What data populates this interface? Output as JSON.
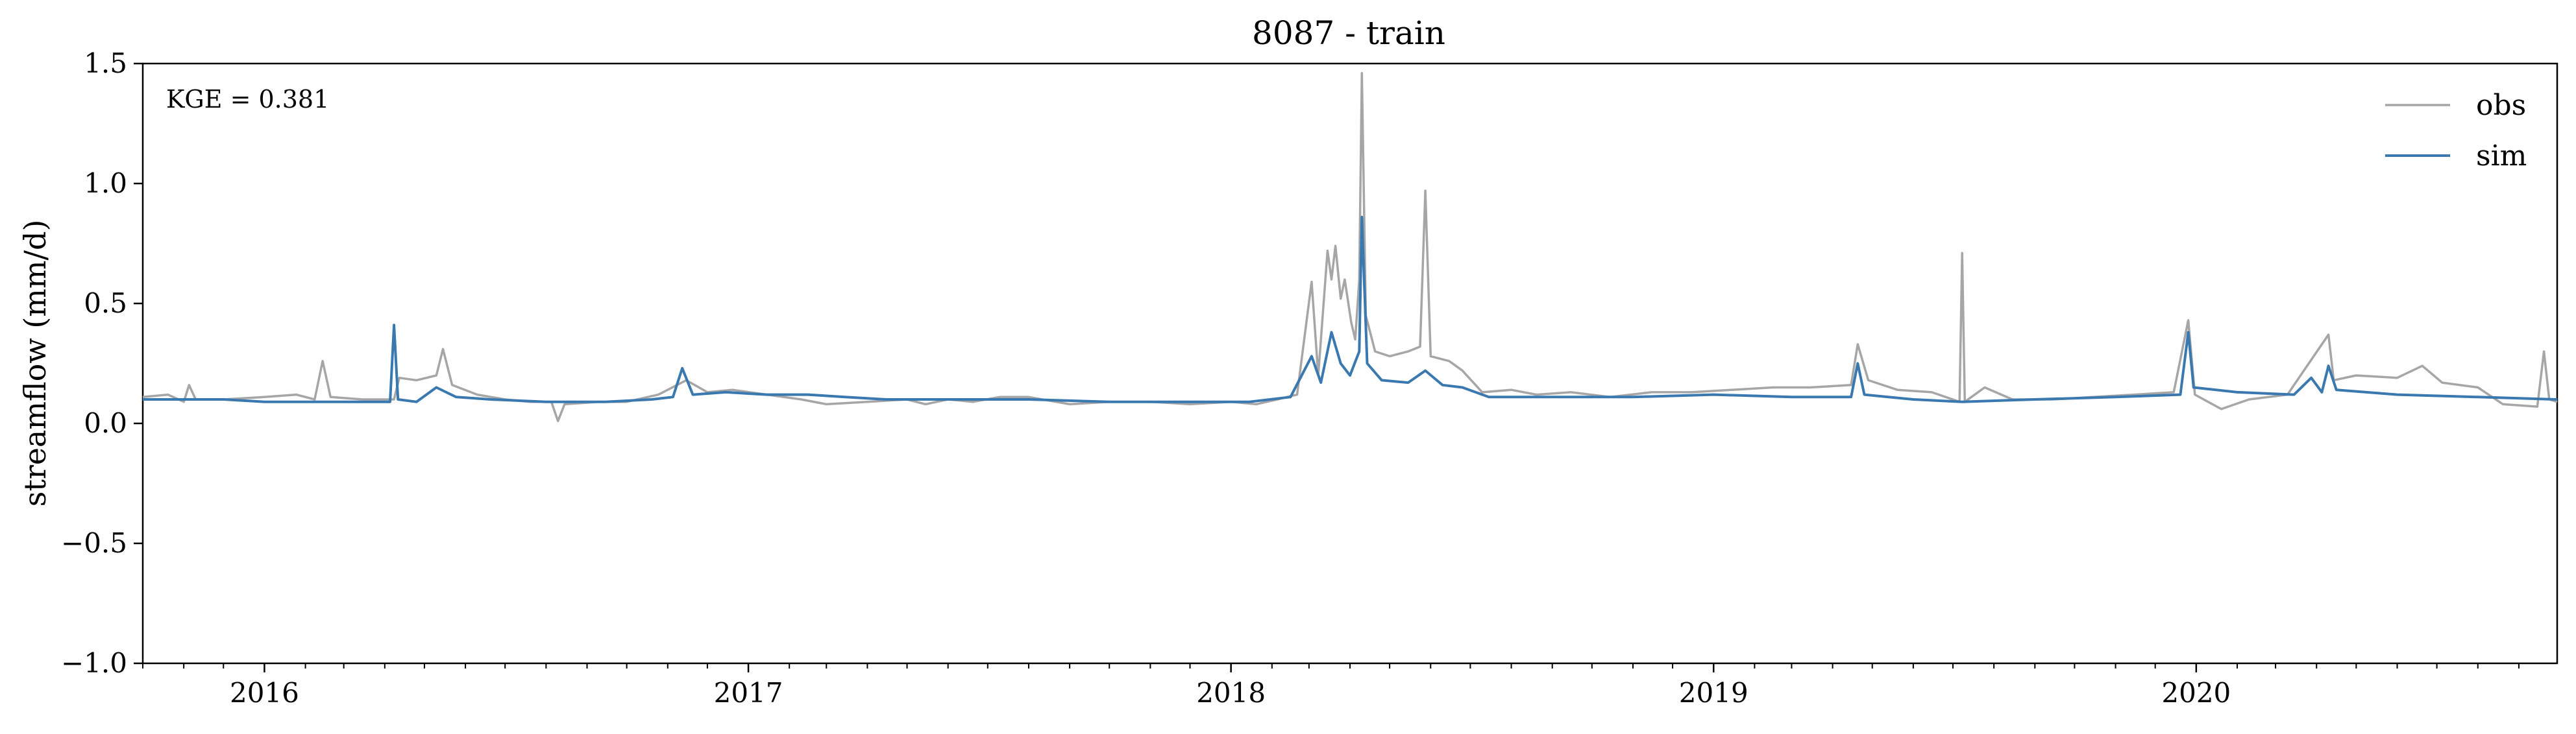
{
  "chart_data": {
    "type": "line",
    "title": "8087 - train",
    "xlabel": "",
    "ylabel": "streamflow (mm/d)",
    "annotation": "KGE = 0.381",
    "xlim": [
      "2015-10-01",
      "2020-09-30"
    ],
    "ylim": [
      -1.0,
      1.5
    ],
    "yticks": [
      -1.0,
      -0.5,
      0.0,
      0.5,
      1.0,
      1.5
    ],
    "ytick_labels": [
      "−1.0",
      "−0.5",
      "0.0",
      "0.5",
      "1.0",
      "1.5"
    ],
    "xticks": [
      "2016-01-01",
      "2017-01-01",
      "2018-01-01",
      "2019-01-01",
      "2020-01-01"
    ],
    "xtick_labels": [
      "2016",
      "2017",
      "2018",
      "2019",
      "2020"
    ],
    "grid": false,
    "legend": "top-right",
    "series": [
      {
        "name": "obs",
        "color": "#a6a6a6",
        "points": [
          [
            "2015-10-01",
            0.11
          ],
          [
            "2015-10-20",
            0.12
          ],
          [
            "2015-11-01",
            0.09
          ],
          [
            "2015-11-05",
            0.16
          ],
          [
            "2015-11-10",
            0.1
          ],
          [
            "2015-12-01",
            0.1
          ],
          [
            "2016-01-01",
            0.11
          ],
          [
            "2016-01-25",
            0.12
          ],
          [
            "2016-02-08",
            0.1
          ],
          [
            "2016-02-14",
            0.26
          ],
          [
            "2016-02-20",
            0.11
          ],
          [
            "2016-03-15",
            0.1
          ],
          [
            "2016-04-08",
            0.1
          ],
          [
            "2016-04-12",
            0.19
          ],
          [
            "2016-04-25",
            0.18
          ],
          [
            "2016-05-10",
            0.2
          ],
          [
            "2016-05-15",
            0.31
          ],
          [
            "2016-05-22",
            0.16
          ],
          [
            "2016-06-10",
            0.12
          ],
          [
            "2016-07-01",
            0.1
          ],
          [
            "2016-07-20",
            0.09
          ],
          [
            "2016-08-05",
            0.09
          ],
          [
            "2016-08-10",
            0.01
          ],
          [
            "2016-08-15",
            0.08
          ],
          [
            "2016-09-10",
            0.09
          ],
          [
            "2016-10-01",
            0.09
          ],
          [
            "2016-10-25",
            0.12
          ],
          [
            "2016-11-15",
            0.18
          ],
          [
            "2016-12-01",
            0.13
          ],
          [
            "2016-12-20",
            0.14
          ],
          [
            "2017-01-15",
            0.12
          ],
          [
            "2017-02-10",
            0.1
          ],
          [
            "2017-03-01",
            0.08
          ],
          [
            "2017-04-01",
            0.09
          ],
          [
            "2017-05-01",
            0.1
          ],
          [
            "2017-05-15",
            0.08
          ],
          [
            "2017-06-01",
            0.1
          ],
          [
            "2017-06-20",
            0.09
          ],
          [
            "2017-07-10",
            0.11
          ],
          [
            "2017-08-01",
            0.11
          ],
          [
            "2017-09-01",
            0.08
          ],
          [
            "2017-10-01",
            0.09
          ],
          [
            "2017-11-01",
            0.09
          ],
          [
            "2017-12-01",
            0.08
          ],
          [
            "2018-01-01",
            0.09
          ],
          [
            "2018-01-20",
            0.08
          ],
          [
            "2018-02-05",
            0.1
          ],
          [
            "2018-02-20",
            0.12
          ],
          [
            "2018-03-03",
            0.59
          ],
          [
            "2018-03-08",
            0.2
          ],
          [
            "2018-03-15",
            0.72
          ],
          [
            "2018-03-18",
            0.6
          ],
          [
            "2018-03-21",
            0.74
          ],
          [
            "2018-03-25",
            0.52
          ],
          [
            "2018-03-28",
            0.6
          ],
          [
            "2018-04-02",
            0.42
          ],
          [
            "2018-04-05",
            0.35
          ],
          [
            "2018-04-08",
            0.6
          ],
          [
            "2018-04-10",
            1.46
          ],
          [
            "2018-04-13",
            0.45
          ],
          [
            "2018-04-20",
            0.3
          ],
          [
            "2018-05-01",
            0.28
          ],
          [
            "2018-05-15",
            0.3
          ],
          [
            "2018-05-24",
            0.32
          ],
          [
            "2018-05-28",
            0.97
          ],
          [
            "2018-06-01",
            0.28
          ],
          [
            "2018-06-15",
            0.26
          ],
          [
            "2018-06-25",
            0.22
          ],
          [
            "2018-07-10",
            0.13
          ],
          [
            "2018-08-01",
            0.14
          ],
          [
            "2018-08-20",
            0.12
          ],
          [
            "2018-09-15",
            0.13
          ],
          [
            "2018-10-15",
            0.11
          ],
          [
            "2018-11-15",
            0.13
          ],
          [
            "2018-12-15",
            0.13
          ],
          [
            "2019-01-15",
            0.14
          ],
          [
            "2019-02-15",
            0.15
          ],
          [
            "2019-03-15",
            0.15
          ],
          [
            "2019-04-15",
            0.16
          ],
          [
            "2019-04-20",
            0.33
          ],
          [
            "2019-04-28",
            0.18
          ],
          [
            "2019-05-20",
            0.14
          ],
          [
            "2019-06-15",
            0.13
          ],
          [
            "2019-07-06",
            0.09
          ],
          [
            "2019-07-08",
            0.71
          ],
          [
            "2019-07-10",
            0.09
          ],
          [
            "2019-07-25",
            0.15
          ],
          [
            "2019-08-15",
            0.1
          ],
          [
            "2019-09-15",
            0.1
          ],
          [
            "2019-10-15",
            0.11
          ],
          [
            "2019-11-15",
            0.12
          ],
          [
            "2019-12-15",
            0.13
          ],
          [
            "2019-12-26",
            0.43
          ],
          [
            "2019-12-31",
            0.12
          ],
          [
            "2020-01-20",
            0.06
          ],
          [
            "2020-02-10",
            0.1
          ],
          [
            "2020-03-10",
            0.12
          ],
          [
            "2020-04-10",
            0.37
          ],
          [
            "2020-04-14",
            0.18
          ],
          [
            "2020-05-01",
            0.2
          ],
          [
            "2020-06-01",
            0.19
          ],
          [
            "2020-06-20",
            0.24
          ],
          [
            "2020-07-05",
            0.17
          ],
          [
            "2020-08-01",
            0.15
          ],
          [
            "2020-08-20",
            0.08
          ],
          [
            "2020-09-15",
            0.07
          ],
          [
            "2020-09-20",
            0.3
          ],
          [
            "2020-09-24",
            0.1
          ],
          [
            "2020-09-30",
            0.09
          ]
        ]
      },
      {
        "name": "sim",
        "color": "#3a78b0",
        "points": [
          [
            "2015-10-01",
            0.1
          ],
          [
            "2015-11-01",
            0.1
          ],
          [
            "2015-12-01",
            0.1
          ],
          [
            "2016-01-01",
            0.09
          ],
          [
            "2016-02-01",
            0.09
          ],
          [
            "2016-03-01",
            0.09
          ],
          [
            "2016-04-05",
            0.09
          ],
          [
            "2016-04-08",
            0.41
          ],
          [
            "2016-04-11",
            0.1
          ],
          [
            "2016-04-25",
            0.09
          ],
          [
            "2016-05-10",
            0.15
          ],
          [
            "2016-05-25",
            0.11
          ],
          [
            "2016-06-20",
            0.1
          ],
          [
            "2016-08-01",
            0.09
          ],
          [
            "2016-09-15",
            0.09
          ],
          [
            "2016-10-20",
            0.1
          ],
          [
            "2016-11-05",
            0.11
          ],
          [
            "2016-11-12",
            0.23
          ],
          [
            "2016-11-20",
            0.12
          ],
          [
            "2016-12-15",
            0.13
          ],
          [
            "2017-01-15",
            0.12
          ],
          [
            "2017-02-15",
            0.12
          ],
          [
            "2017-03-15",
            0.11
          ],
          [
            "2017-04-15",
            0.1
          ],
          [
            "2017-06-01",
            0.1
          ],
          [
            "2017-08-01",
            0.1
          ],
          [
            "2017-10-01",
            0.09
          ],
          [
            "2017-12-01",
            0.09
          ],
          [
            "2018-01-15",
            0.09
          ],
          [
            "2018-02-15",
            0.11
          ],
          [
            "2018-03-03",
            0.28
          ],
          [
            "2018-03-10",
            0.17
          ],
          [
            "2018-03-18",
            0.38
          ],
          [
            "2018-03-25",
            0.25
          ],
          [
            "2018-04-01",
            0.2
          ],
          [
            "2018-04-08",
            0.3
          ],
          [
            "2018-04-10",
            0.86
          ],
          [
            "2018-04-14",
            0.25
          ],
          [
            "2018-04-25",
            0.18
          ],
          [
            "2018-05-15",
            0.17
          ],
          [
            "2018-05-28",
            0.22
          ],
          [
            "2018-06-10",
            0.16
          ],
          [
            "2018-06-25",
            0.15
          ],
          [
            "2018-07-15",
            0.11
          ],
          [
            "2018-09-01",
            0.11
          ],
          [
            "2018-11-01",
            0.11
          ],
          [
            "2019-01-01",
            0.12
          ],
          [
            "2019-03-01",
            0.11
          ],
          [
            "2019-04-15",
            0.11
          ],
          [
            "2019-04-20",
            0.25
          ],
          [
            "2019-04-25",
            0.12
          ],
          [
            "2019-06-01",
            0.1
          ],
          [
            "2019-07-08",
            0.09
          ],
          [
            "2019-09-01",
            0.1
          ],
          [
            "2019-11-01",
            0.11
          ],
          [
            "2019-12-20",
            0.12
          ],
          [
            "2019-12-26",
            0.38
          ],
          [
            "2019-12-30",
            0.15
          ],
          [
            "2020-02-01",
            0.13
          ],
          [
            "2020-03-15",
            0.12
          ],
          [
            "2020-03-28",
            0.19
          ],
          [
            "2020-04-05",
            0.13
          ],
          [
            "2020-04-10",
            0.24
          ],
          [
            "2020-04-16",
            0.14
          ],
          [
            "2020-06-01",
            0.12
          ],
          [
            "2020-08-01",
            0.11
          ],
          [
            "2020-09-30",
            0.1
          ]
        ]
      }
    ]
  }
}
